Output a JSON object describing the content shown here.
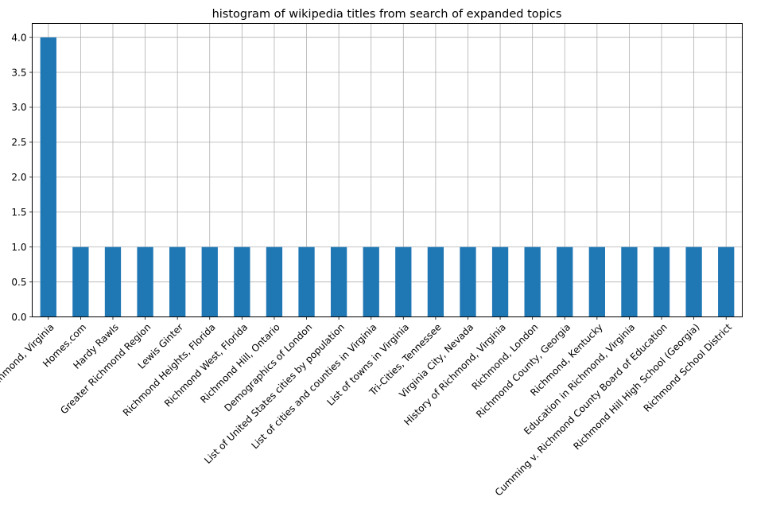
{
  "chart_data": {
    "type": "bar",
    "title": "histogram of wikipedia titles from search of expanded topics",
    "xlabel": "",
    "ylabel": "",
    "categories": [
      "Richmond, Virginia",
      "Homes.com",
      "Hardy Rawls",
      "Greater Richmond Region",
      "Lewis Ginter",
      "Richmond Heights, Florida",
      "Richmond West, Florida",
      "Richmond Hill, Ontario",
      "Demographics of London",
      "List of United States cities by population",
      "List of cities and counties in Virginia",
      "List of towns in Virginia",
      "Tri-Cities, Tennessee",
      "Virginia City, Nevada",
      "History of Richmond, Virginia",
      "Richmond, London",
      "Richmond County, Georgia",
      "Richmond, Kentucky",
      "Education in Richmond, Virginia",
      "Cumming v. Richmond County Board of Education",
      "Richmond Hill High School (Georgia)",
      "Richmond School District"
    ],
    "values": [
      4,
      1,
      1,
      1,
      1,
      1,
      1,
      1,
      1,
      1,
      1,
      1,
      1,
      1,
      1,
      1,
      1,
      1,
      1,
      1,
      1,
      1
    ],
    "ylim": [
      0,
      4.2
    ],
    "yticks": [
      "0.0",
      "0.5",
      "1.0",
      "1.5",
      "2.0",
      "2.5",
      "3.0",
      "3.5",
      "4.0"
    ],
    "grid": true,
    "bar_color": "#1f77b4",
    "grid_color": "#b0b0b0"
  }
}
